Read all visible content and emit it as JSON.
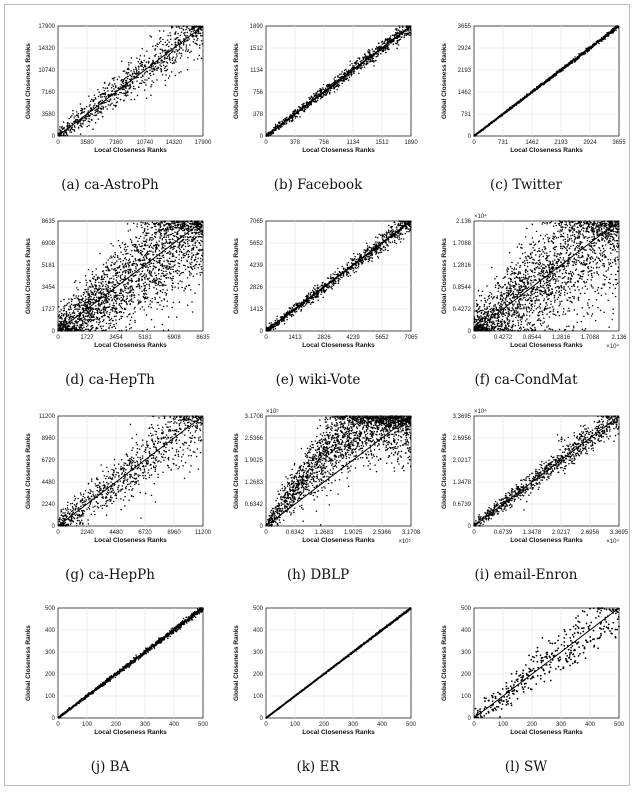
{
  "chart_data": [
    {
      "type": "scatter",
      "caption": "(a) ca-AstroPh",
      "xlabel": "Local Closeness Ranks",
      "ylabel": "Global Closeness Ranks",
      "xlim": [
        0,
        17900
      ],
      "ylim": [
        0,
        17900
      ],
      "xticks": [
        "0",
        "3580",
        "7160",
        "10740",
        "14320",
        "17900"
      ],
      "yticks": [
        "0",
        "3580",
        "7160",
        "10740",
        "14320",
        "17900"
      ],
      "exponent_x": "",
      "exponent_y": "",
      "spread": 0.1,
      "shape": "linear"
    },
    {
      "type": "scatter",
      "caption": "(b) Facebook",
      "xlabel": "Local Closeness Ranks",
      "ylabel": "Global Closeness Ranks",
      "xlim": [
        0,
        1890
      ],
      "ylim": [
        0,
        1890
      ],
      "xticks": [
        "0",
        "378",
        "756",
        "1134",
        "1512",
        "1890"
      ],
      "yticks": [
        "0",
        "378",
        "756",
        "1134",
        "1512",
        "1890"
      ],
      "exponent_x": "",
      "exponent_y": "",
      "spread": 0.035,
      "shape": "linear"
    },
    {
      "type": "scatter",
      "caption": "(c) Twitter",
      "xlabel": "Local Closeness Ranks",
      "ylabel": "Global Closeness Ranks",
      "xlim": [
        0,
        3655
      ],
      "ylim": [
        0,
        3655
      ],
      "xticks": [
        "0",
        "731",
        "1462",
        "2193",
        "2924",
        "3655"
      ],
      "yticks": [
        "0",
        "731",
        "1462",
        "2193",
        "2924",
        "3655"
      ],
      "exponent_x": "",
      "exponent_y": "",
      "spread": 0.008,
      "shape": "linear"
    },
    {
      "type": "scatter",
      "caption": "(d) ca-HepTh",
      "xlabel": "Local Closeness Ranks",
      "ylabel": "Global Closeness Ranks",
      "xlim": [
        0,
        8635
      ],
      "ylim": [
        0,
        8635
      ],
      "xticks": [
        "0",
        "1727",
        "3454",
        "5181",
        "6908",
        "8635"
      ],
      "yticks": [
        "0",
        "1727",
        "3454",
        "5181",
        "6908",
        "8635"
      ],
      "exponent_x": "",
      "exponent_y": "",
      "spread": 0.25,
      "shape": "linear"
    },
    {
      "type": "scatter",
      "caption": "(e) wiki-Vote",
      "xlabel": "Local Closeness Ranks",
      "ylabel": "Global Closeness Ranks",
      "xlim": [
        0,
        7065
      ],
      "ylim": [
        0,
        7065
      ],
      "xticks": [
        "0",
        "1413",
        "2826",
        "4239",
        "5652",
        "7065"
      ],
      "yticks": [
        "0",
        "1413",
        "2826",
        "4239",
        "5652",
        "7065"
      ],
      "exponent_x": "",
      "exponent_y": "",
      "spread": 0.04,
      "shape": "linear"
    },
    {
      "type": "scatter",
      "caption": "(f) ca-CondMat",
      "xlabel": "Local Closeness Ranks",
      "ylabel": "Global Closeness Ranks",
      "xlim": [
        0,
        2.136
      ],
      "ylim": [
        0,
        2.136
      ],
      "xticks": [
        "0",
        "0.4272",
        "0.8544",
        "1.2816",
        "1.7088",
        "2.136"
      ],
      "yticks": [
        "0",
        "0.4272",
        "0.8544",
        "1.2816",
        "1.7088",
        "2.136"
      ],
      "exponent_x": "×10⁴",
      "exponent_y": "×10⁴",
      "spread": 0.3,
      "shape": "linear"
    },
    {
      "type": "scatter",
      "caption": "(g) ca-HepPh",
      "xlabel": "Local Closeness Ranks",
      "ylabel": "Global Closeness Ranks",
      "xlim": [
        0,
        11200
      ],
      "ylim": [
        0,
        11200
      ],
      "xticks": [
        "0",
        "2240",
        "4480",
        "6720",
        "8960",
        "11200"
      ],
      "yticks": [
        "0",
        "2240",
        "4480",
        "6720",
        "8960",
        "11200"
      ],
      "exponent_x": "",
      "exponent_y": "",
      "spread": 0.15,
      "shape": "linear"
    },
    {
      "type": "scatter",
      "caption": "(h) DBLP",
      "xlabel": "Local Closeness Ranks",
      "ylabel": "Global Closeness Ranks",
      "xlim": [
        0,
        3.1708
      ],
      "ylim": [
        0,
        3.1708
      ],
      "xticks": [
        "0",
        "0.6342",
        "1.2683",
        "1.9025",
        "2.5366",
        "3.1708"
      ],
      "yticks": [
        "0",
        "0.6342",
        "1.2683",
        "1.9025",
        "2.5366",
        "3.1708"
      ],
      "exponent_x": "×10⁵",
      "exponent_y": "×10⁵",
      "spread": 0.22,
      "shape": "curved"
    },
    {
      "type": "scatter",
      "caption": "(i) email-Enron",
      "xlabel": "Local Closeness Ranks",
      "ylabel": "Global Closeness Ranks",
      "xlim": [
        0,
        3.3695
      ],
      "ylim": [
        0,
        3.3695
      ],
      "xticks": [
        "0",
        "0.6739",
        "1.3478",
        "2.0217",
        "2.6956",
        "3.3695"
      ],
      "yticks": [
        "0",
        "0.6739",
        "1.3478",
        "2.0217",
        "2.6956",
        "3.3695"
      ],
      "exponent_x": "×10⁴",
      "exponent_y": "×10⁴",
      "spread": 0.05,
      "shape": "enron"
    },
    {
      "type": "scatter",
      "caption": "(j) BA",
      "xlabel": "Local Closeness Ranks",
      "ylabel": "Global Closeness Ranks",
      "xlim": [
        0,
        500
      ],
      "ylim": [
        0,
        500
      ],
      "xticks": [
        "0",
        "100",
        "200",
        "300",
        "400",
        "500"
      ],
      "yticks": [
        "0",
        "100",
        "200",
        "300",
        "400",
        "500"
      ],
      "exponent_x": "",
      "exponent_y": "",
      "spread": 0.012,
      "shape": "linear"
    },
    {
      "type": "scatter",
      "caption": "(k) ER",
      "xlabel": "Local Closeness Ranks",
      "ylabel": "Global Closeness Ranks",
      "xlim": [
        0,
        500
      ],
      "ylim": [
        0,
        500
      ],
      "xticks": [
        "0",
        "100",
        "200",
        "300",
        "400",
        "500"
      ],
      "yticks": [
        "0",
        "100",
        "200",
        "300",
        "400",
        "500"
      ],
      "exponent_x": "",
      "exponent_y": "",
      "spread": 0.004,
      "shape": "linear"
    },
    {
      "type": "scatter",
      "caption": "(l) SW",
      "xlabel": "Local Closeness Ranks",
      "ylabel": "Global Closeness Ranks",
      "xlim": [
        0,
        500
      ],
      "ylim": [
        0,
        500
      ],
      "xticks": [
        "0",
        "100",
        "200",
        "300",
        "400",
        "500"
      ],
      "yticks": [
        "0",
        "100",
        "200",
        "300",
        "400",
        "500"
      ],
      "exponent_x": "",
      "exponent_y": "",
      "spread": 0.12,
      "shape": "sparse"
    }
  ]
}
